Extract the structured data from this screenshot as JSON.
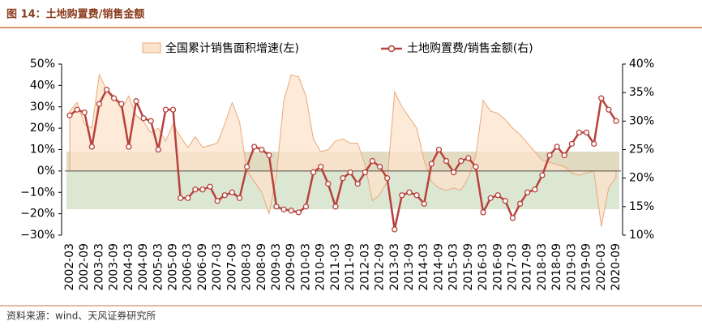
{
  "title": "图 14：土地购置费/销售金额",
  "source": "资料来源：wind、天风证券研究所",
  "chart_data": {
    "type": "area-line",
    "categories": [
      "2002-03",
      null,
      "2002-09",
      null,
      "2003-03",
      null,
      "2003-09",
      null,
      "2004-03",
      null,
      "2004-09",
      null,
      "2005-03",
      null,
      "2005-09",
      null,
      "2006-03",
      null,
      "2006-09",
      null,
      "2007-03",
      null,
      "2007-09",
      null,
      "2008-03",
      null,
      "2008-09",
      null,
      "2009-03",
      null,
      "2009-09",
      null,
      "2010-03",
      null,
      "2010-09",
      null,
      "2011-03",
      null,
      "2011-09",
      null,
      "2012-03",
      null,
      "2012-09",
      null,
      "2013-03",
      null,
      "2013-09",
      null,
      "2014-03",
      null,
      "2014-09",
      null,
      "2015-03",
      null,
      "2015-09",
      null,
      "2016-03",
      null,
      "2016-09",
      null,
      "2017-03",
      null,
      "2017-09",
      null,
      "2018-03",
      null,
      "2018-09",
      null,
      "2019-03",
      null,
      "2019-09",
      null,
      "2020-03",
      null,
      "2020-09"
    ],
    "series": [
      {
        "name": "全国累计销售面积增速(左)",
        "kind": "area",
        "color": "#e9a97a",
        "fill": "#fce3cc",
        "values": [
          28,
          32,
          22,
          20,
          45,
          38,
          35,
          29,
          35,
          26,
          23,
          18,
          20,
          14,
          22,
          16,
          11,
          16,
          11,
          12,
          13,
          22,
          32,
          23,
          0,
          -5,
          -10,
          -20,
          -2,
          33,
          45,
          44,
          35,
          15,
          9,
          10,
          14,
          15,
          13,
          13,
          3,
          -14,
          -11,
          -5,
          37,
          30,
          25,
          20,
          5,
          -5,
          -8,
          -9,
          -8,
          -9,
          -3,
          7,
          33,
          28,
          27,
          24,
          20,
          17,
          13,
          9,
          5,
          4,
          3,
          2,
          -1,
          -2,
          -1,
          0,
          -26,
          -8,
          -3
        ]
      },
      {
        "name": "土地购置费/销售金额(右)",
        "kind": "line",
        "axis": "y2",
        "color": "#b8413b",
        "values": [
          31,
          32,
          31.5,
          25.5,
          33,
          35.5,
          34,
          33,
          25.5,
          33.5,
          30.5,
          30,
          25,
          32,
          32,
          16.5,
          16.5,
          18,
          18,
          18.5,
          16,
          17,
          17.5,
          16.5,
          22,
          25.5,
          25,
          24,
          15,
          14.5,
          14.3,
          14,
          15,
          21,
          22,
          19,
          15,
          20,
          21,
          19,
          21,
          23,
          22,
          20,
          11,
          17,
          17.5,
          17,
          15.5,
          22.5,
          25,
          23,
          21,
          23,
          23.5,
          22,
          14,
          16.5,
          17,
          16,
          13,
          15.5,
          17.5,
          18,
          20.5,
          24,
          25.5,
          24,
          26,
          28,
          28,
          26,
          34,
          32,
          30
        ]
      }
    ],
    "ylim": [
      -30,
      50
    ],
    "yticks": [
      {
        "value": -30,
        "label": "−30%"
      },
      {
        "value": -20,
        "label": "−20%"
      },
      {
        "value": -10,
        "label": "−10%"
      },
      {
        "value": 0,
        "label": "0%"
      },
      {
        "value": 10,
        "label": "10%"
      },
      {
        "value": 20,
        "label": "20%"
      },
      {
        "value": 30,
        "label": "30%"
      },
      {
        "value": 40,
        "label": "40%"
      },
      {
        "value": 50,
        "label": "50%"
      }
    ],
    "y2lim": [
      10,
      40
    ],
    "y2ticks": [
      {
        "value": 10,
        "label": "10%"
      },
      {
        "value": 15,
        "label": "15%"
      },
      {
        "value": 20,
        "label": "20%"
      },
      {
        "value": 25,
        "label": "25%"
      },
      {
        "value": 30,
        "label": "30%"
      },
      {
        "value": 35,
        "label": "35%"
      },
      {
        "value": 40,
        "label": "40%"
      }
    ]
  }
}
